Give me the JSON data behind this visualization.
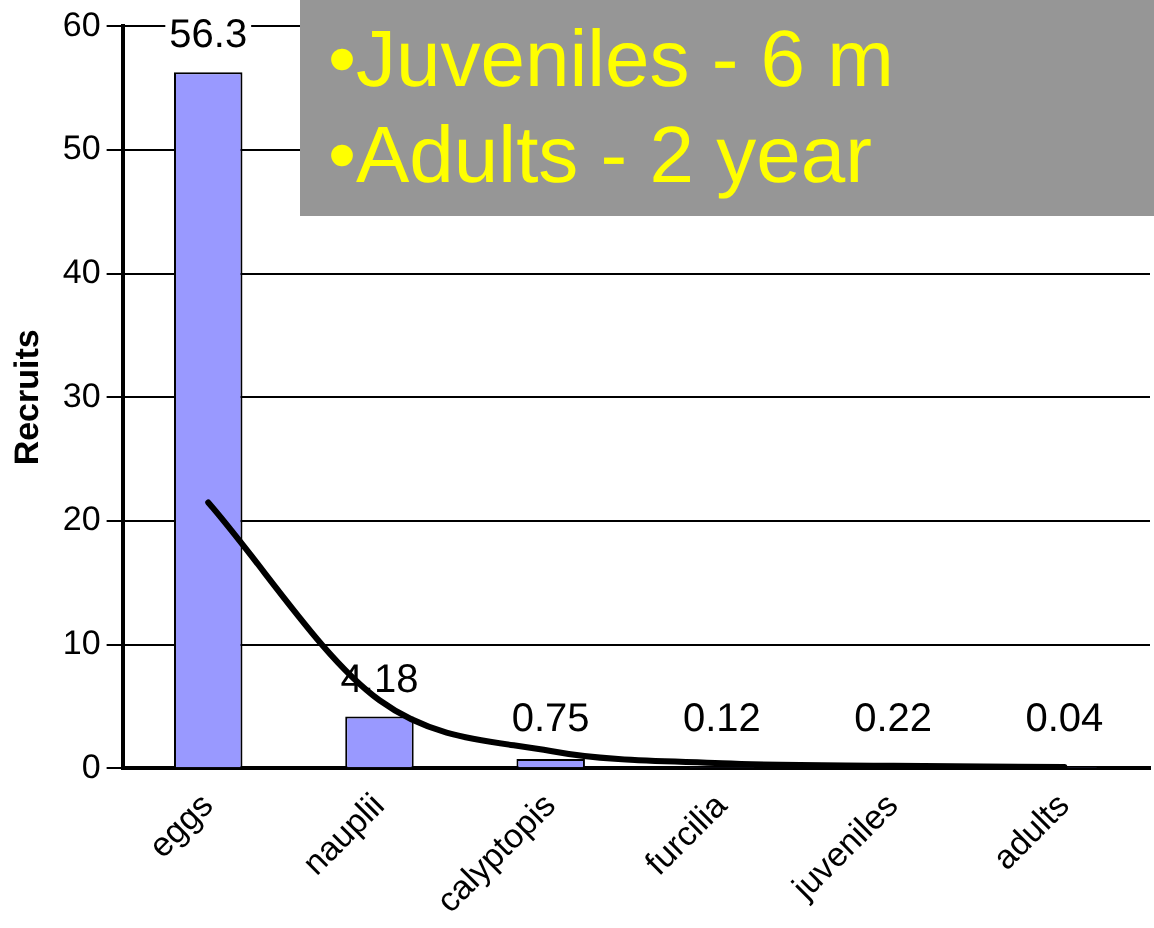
{
  "chart_data": {
    "type": "bar",
    "ylabel": "Recruits",
    "categories": [
      "eggs",
      "nauplii",
      "calyptopis",
      "furcilia",
      "juveniles",
      "adults"
    ],
    "series": [
      {
        "color": "#9999ff",
        "values": [
          56.3,
          4.18,
          0.75,
          0.12,
          0.22,
          0.04
        ],
        "data_labels": true
      },
      {
        "type": "line",
        "color": "#000000",
        "values": [
          21.5,
          5.5,
          1.4,
          0.4,
          0.2,
          0.1
        ]
      }
    ],
    "ylim": [
      0,
      60
    ],
    "yticks": [
      0,
      10,
      20,
      30,
      40,
      50,
      60
    ],
    "grid": "y",
    "legend": false,
    "marker": "none",
    "line_style": "solid",
    "annotations": [
      "•Juveniles - 6 m",
      "•Adults - 2 year"
    ]
  }
}
